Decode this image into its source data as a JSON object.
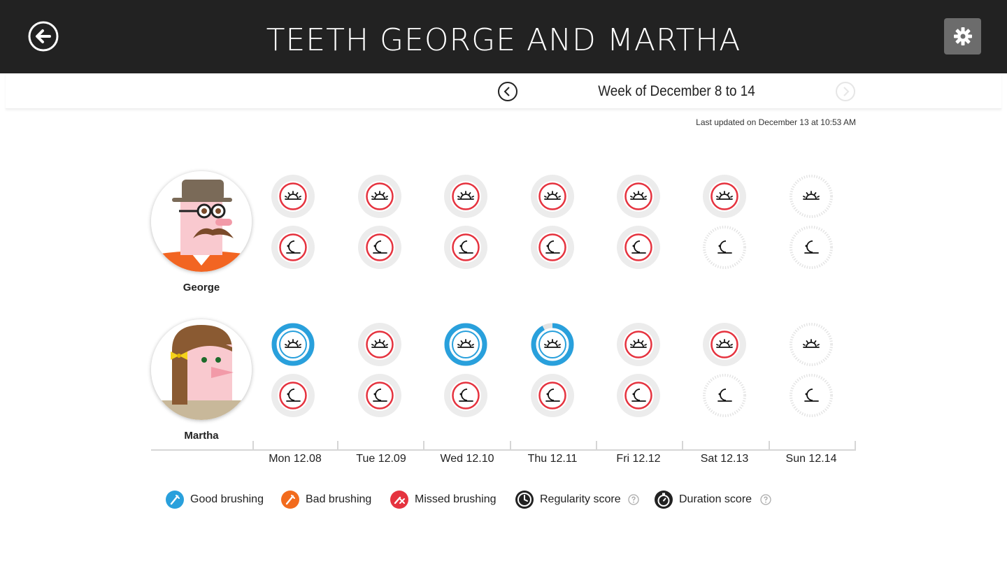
{
  "header": {
    "title": "TEETH GEORGE AND MARTHA"
  },
  "week": {
    "label": "Week of December 8 to 14",
    "updated": "Last updated on December 13 at 10:53 AM"
  },
  "days": [
    "Mon 12.08",
    "Tue 12.09",
    "Wed 12.10",
    "Thu 12.11",
    "Fri 12.12",
    "Sat 12.13",
    "Sun 12.14"
  ],
  "people": [
    {
      "name": "George",
      "morning": [
        "missed",
        "missed",
        "missed",
        "missed",
        "missed",
        "missed",
        "upcoming"
      ],
      "evening": [
        "missed",
        "missed",
        "missed",
        "missed",
        "missed",
        "upcoming",
        "upcoming"
      ]
    },
    {
      "name": "Martha",
      "morning": [
        "good",
        "missed",
        "good",
        "good",
        "missed",
        "missed",
        "upcoming"
      ],
      "morning_progress": [
        1,
        0,
        1,
        0.92,
        0,
        0,
        0
      ],
      "evening": [
        "missed",
        "missed",
        "missed",
        "missed",
        "missed",
        "upcoming",
        "upcoming"
      ]
    }
  ],
  "legend": {
    "good": "Good brushing",
    "bad": "Bad brushing",
    "missed": "Missed brushing",
    "regularity": "Regularity score",
    "duration": "Duration score"
  },
  "colors": {
    "good": "#29a0dc",
    "bad": "#f26b1d",
    "missed": "#e5333f",
    "ring": "#ececec",
    "topbar": "#222222"
  },
  "icons": {
    "morning": "sunrise-icon",
    "evening": "moon-icon"
  }
}
